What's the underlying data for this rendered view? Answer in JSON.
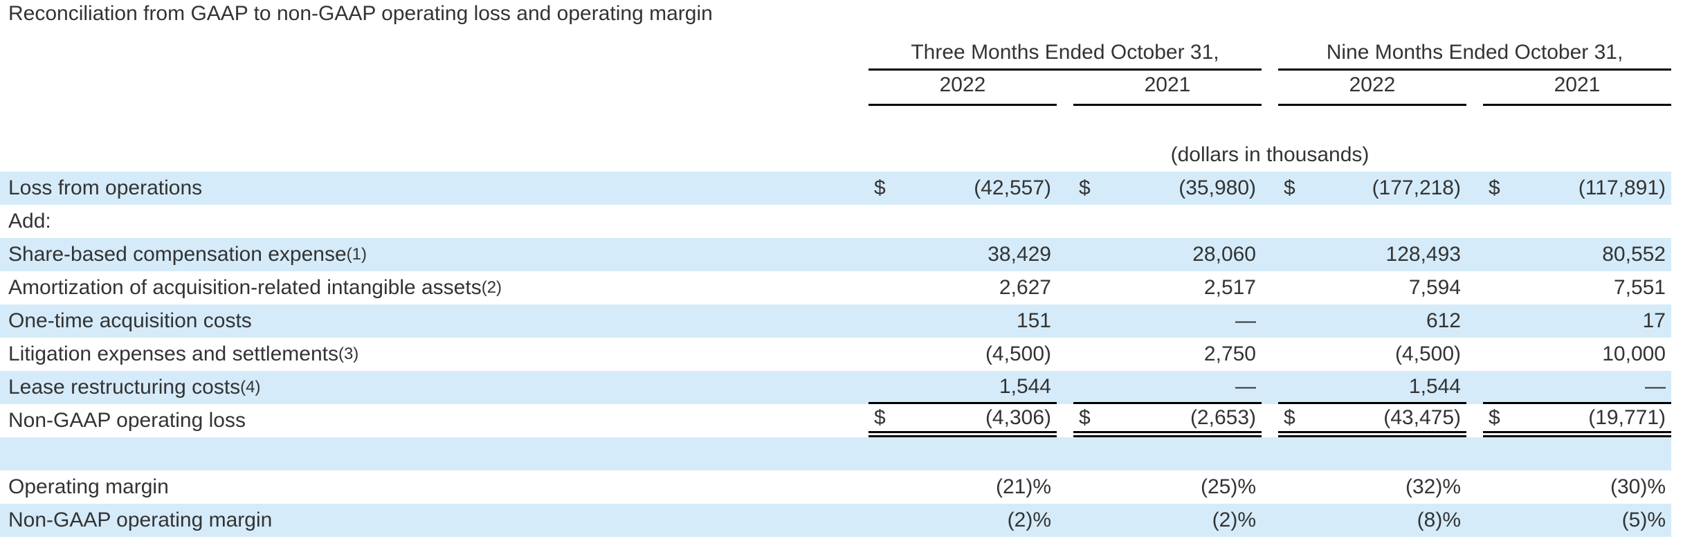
{
  "title": "Reconciliation from GAAP to non-GAAP operating loss and operating margin",
  "header": {
    "group_headers": [
      "Three Months Ended October 31,",
      "Nine Months Ended October 31,"
    ],
    "year_headers": [
      "2022",
      "2021",
      "2022",
      "2021"
    ],
    "units_note": "(dollars in thousands)"
  },
  "colors": {
    "row_highlight": "#d5ebf9",
    "text": "#333333",
    "line": "#000000"
  },
  "table": {
    "currency_symbol": "$",
    "rows": [
      {
        "label": "Loss from operations",
        "footnote": "",
        "highlight": true,
        "dollar": true,
        "border_bottom": "none",
        "values": [
          "(42,557)",
          "(35,980)",
          "(177,218)",
          "(117,891)"
        ]
      },
      {
        "label": "Add:",
        "footnote": "",
        "highlight": false,
        "dollar": false,
        "border_bottom": "none",
        "values": [
          "",
          "",
          "",
          ""
        ]
      },
      {
        "label": "Share-based compensation expense",
        "footnote": "(1)",
        "highlight": true,
        "dollar": false,
        "border_bottom": "none",
        "values": [
          "38,429",
          "28,060",
          "128,493",
          "80,552"
        ]
      },
      {
        "label": "Amortization of acquisition-related intangible assets",
        "footnote": "(2)",
        "highlight": false,
        "dollar": false,
        "border_bottom": "none",
        "values": [
          "2,627",
          "2,517",
          "7,594",
          "7,551"
        ]
      },
      {
        "label": "One-time acquisition costs",
        "footnote": "",
        "highlight": true,
        "dollar": false,
        "border_bottom": "none",
        "values": [
          "151",
          "—",
          "612",
          "17"
        ]
      },
      {
        "label": "Litigation expenses and settlements",
        "footnote": "(3)",
        "highlight": false,
        "dollar": false,
        "border_bottom": "none",
        "values": [
          "(4,500)",
          "2,750",
          "(4,500)",
          "10,000"
        ]
      },
      {
        "label": "Lease restructuring costs",
        "footnote": "(4)",
        "highlight": true,
        "dollar": false,
        "border_bottom": "single",
        "values": [
          "1,544",
          "—",
          "1,544",
          "—"
        ]
      },
      {
        "label": "Non-GAAP operating loss",
        "footnote": "",
        "highlight": false,
        "dollar": true,
        "border_bottom": "double",
        "values": [
          "(4,306)",
          "(2,653)",
          "(43,475)",
          "(19,771)"
        ]
      },
      {
        "label": "",
        "footnote": "",
        "highlight": true,
        "dollar": false,
        "border_bottom": "none",
        "values": [
          "",
          "",
          "",
          ""
        ]
      },
      {
        "label": "Operating margin",
        "footnote": "",
        "highlight": false,
        "dollar": false,
        "border_bottom": "none",
        "values": [
          "(21)%",
          "(25)%",
          "(32)%",
          "(30)%"
        ]
      },
      {
        "label": "Non-GAAP operating margin",
        "footnote": "",
        "highlight": true,
        "dollar": false,
        "border_bottom": "none",
        "values": [
          "(2)%",
          "(2)%",
          "(8)%",
          "(5)%"
        ]
      }
    ]
  }
}
